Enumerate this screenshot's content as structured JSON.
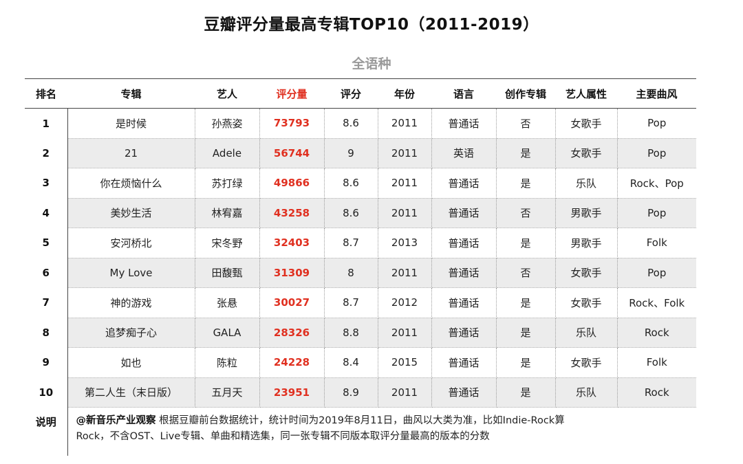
{
  "title": "豆瓣评分量最高专辑TOP10（2011-2019）",
  "subtitle": "全语种",
  "headers": [
    "排名",
    "专辑",
    "艺人",
    "评分量",
    "评分",
    "年份",
    "语言",
    "创作专辑",
    "艺人属性",
    "主要曲风"
  ],
  "rows": [
    [
      "1",
      "是时候",
      "孙燕姿",
      "73793",
      "8.6",
      "2011",
      "普通话",
      "否",
      "女歌手",
      "Pop"
    ],
    [
      "2",
      "21",
      "Adele",
      "56744",
      "9",
      "2011",
      "英语",
      "是",
      "女歌手",
      "Pop"
    ],
    [
      "3",
      "你在烦恼什么",
      "苏打绿",
      "49866",
      "8.6",
      "2011",
      "普通话",
      "是",
      "乐队",
      "Rock、Pop"
    ],
    [
      "4",
      "美妙生活",
      "林宥嘉",
      "43258",
      "8.6",
      "2011",
      "普通话",
      "否",
      "男歌手",
      "Pop"
    ],
    [
      "5",
      "安河桥北",
      "宋冬野",
      "32403",
      "8.7",
      "2013",
      "普通话",
      "是",
      "男歌手",
      "Folk"
    ],
    [
      "6",
      "My Love",
      "田馥甄",
      "31309",
      "8",
      "2011",
      "普通话",
      "否",
      "女歌手",
      "Pop"
    ],
    [
      "7",
      "神的游戏",
      "张悬",
      "30027",
      "8.7",
      "2012",
      "普通话",
      "是",
      "女歌手",
      "Rock、Folk"
    ],
    [
      "8",
      "追梦痴子心",
      "GALA",
      "28326",
      "8.8",
      "2011",
      "普通话",
      "是",
      "乐队",
      "Rock"
    ],
    [
      "9",
      "如也",
      "陈粒",
      "24228",
      "8.4",
      "2015",
      "普通话",
      "是",
      "女歌手",
      "Folk"
    ],
    [
      "10",
      "第二人生（末日版）",
      "五月天",
      "23951",
      "8.9",
      "2011",
      "普通话",
      "是",
      "乐队",
      "Rock"
    ]
  ],
  "note": {
    "label": "说明",
    "source": "@新音乐产业观察",
    "line1": " 根据豆瓣前台数据统计，统计时间为2019年8月11日，曲风以大类为准，比如Indie-Rock算",
    "line2": "Rock，不含OST、Live专辑、单曲和精选集，同一张专辑不同版本取评分量最高的版本的分数"
  },
  "colors": {
    "highlight": "#e03020",
    "alt_row": "#ececec",
    "subtitle": "#9a9a9a"
  }
}
